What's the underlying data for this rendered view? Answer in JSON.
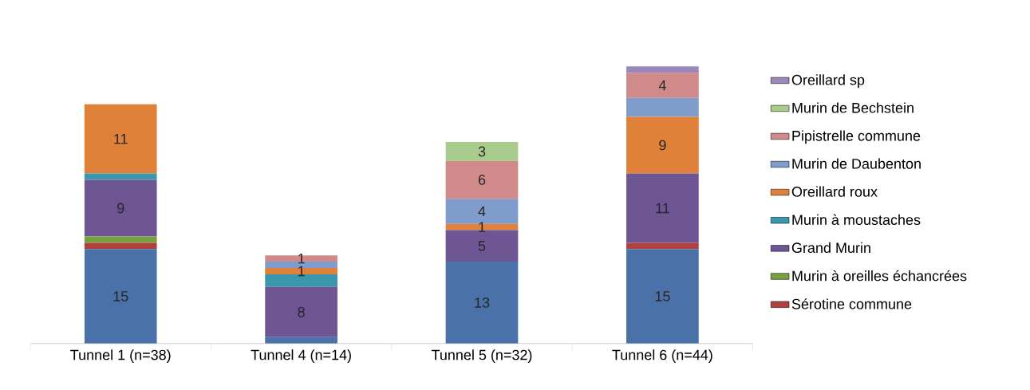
{
  "chart_data": {
    "type": "bar",
    "stacked": true,
    "legend": "right",
    "categories": [
      "Tunnel 1 (n=38)",
      "Tunnel 4 (n=14)",
      "Tunnel 5 (n=32)",
      "Tunnel 6 (n=44)"
    ],
    "series": [
      {
        "color": "#4a72a8",
        "values": [
          15,
          1,
          13,
          15
        ],
        "value_labels": [
          "15",
          null,
          "13",
          "15"
        ]
      },
      {
        "name": "Sérotine commune",
        "color": "#b0413e",
        "values": [
          1,
          null,
          null,
          1
        ]
      },
      {
        "name": "Murin à oreilles échancrées",
        "color": "#77a042",
        "values": [
          1,
          null,
          null,
          null
        ]
      },
      {
        "name": "Grand Murin",
        "color": "#6e5594",
        "values": [
          9,
          8,
          5,
          11
        ],
        "value_labels": [
          "9",
          "8",
          "5",
          "11"
        ]
      },
      {
        "name": "Murin à moustaches",
        "color": "#3a97ae",
        "values": [
          1,
          2,
          null,
          null
        ]
      },
      {
        "name": "Oreillard roux",
        "color": "#e0813a",
        "values": [
          11,
          1,
          1,
          9
        ],
        "value_labels": [
          "11",
          "1",
          "1",
          "9"
        ]
      },
      {
        "name": "Murin de Daubenton",
        "color": "#7f9ccc",
        "values": [
          null,
          1,
          4,
          3
        ],
        "value_labels": [
          null,
          null,
          "4",
          null
        ]
      },
      {
        "name": "Pipistrelle commune",
        "color": "#d08a8a",
        "values": [
          null,
          1,
          6,
          4
        ],
        "value_labels": [
          null,
          "1",
          "6",
          "4"
        ]
      },
      {
        "name": "Murin de Bechstein",
        "color": "#a9cc8c",
        "values": [
          null,
          null,
          3,
          null
        ],
        "value_labels": [
          null,
          null,
          "3",
          null
        ]
      },
      {
        "name": "Oreillard sp",
        "color": "#9a87bd",
        "values": [
          null,
          null,
          null,
          1
        ]
      }
    ]
  }
}
